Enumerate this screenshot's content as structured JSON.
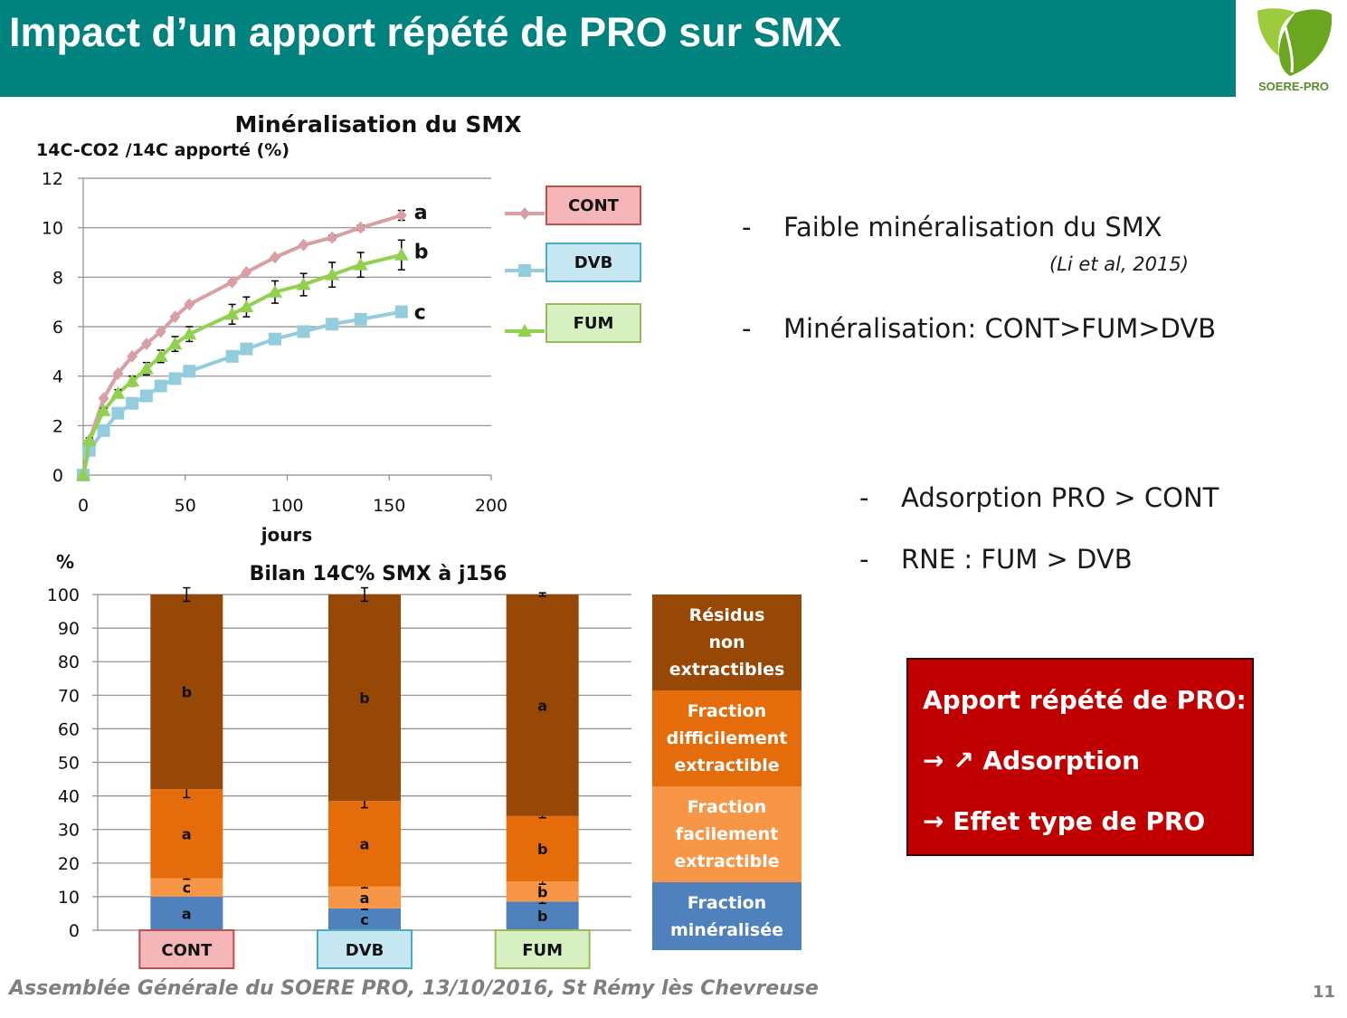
{
  "header": {
    "title": "Impact d’un apport répété de PRO sur SMX"
  },
  "logo": {
    "text": "SOERE-PRO"
  },
  "chart_data": [
    {
      "type": "line",
      "title": "Minéralisation du SMX",
      "ylabel": "14C-CO2 /14C apporté (%)",
      "xlabel": "jours",
      "xlim": [
        0,
        200
      ],
      "ylim": [
        0,
        12
      ],
      "xticks": [
        "0",
        "50",
        "100",
        "150",
        "200"
      ],
      "yticks": [
        "0",
        "2",
        "4",
        "6",
        "8",
        "10",
        "12"
      ],
      "grid": "horizontal",
      "legend_placement": "right",
      "series": [
        {
          "name": "CONT",
          "color": "#d8a0a4",
          "marker": "diamond",
          "letter": "a",
          "x": [
            0,
            3,
            10,
            17,
            24,
            31,
            38,
            45,
            52,
            73,
            80,
            94,
            108,
            122,
            136,
            156
          ],
          "y": [
            0,
            1.4,
            3.1,
            4.1,
            4.8,
            5.3,
            5.8,
            6.4,
            6.9,
            7.8,
            8.2,
            8.8,
            9.3,
            9.6,
            10.0,
            10.5
          ],
          "err": [
            0,
            0.05,
            0.05,
            0.05,
            0.05,
            0.05,
            0.05,
            0.05,
            0.05,
            0.05,
            0.05,
            0.05,
            0.05,
            0.1,
            0.1,
            0.2
          ]
        },
        {
          "name": "DVB",
          "color": "#93cddd",
          "marker": "square",
          "letter": "c",
          "x": [
            0,
            3,
            10,
            17,
            24,
            31,
            38,
            45,
            52,
            73,
            80,
            94,
            108,
            122,
            136,
            156
          ],
          "y": [
            0,
            1.0,
            1.8,
            2.5,
            2.9,
            3.2,
            3.6,
            3.9,
            4.2,
            4.8,
            5.1,
            5.5,
            5.8,
            6.1,
            6.3,
            6.6
          ],
          "err": [
            0,
            0,
            0,
            0,
            0,
            0,
            0,
            0,
            0,
            0,
            0,
            0,
            0,
            0,
            0,
            0
          ]
        },
        {
          "name": "FUM",
          "color": "#92d050",
          "marker": "triangle",
          "letter": "b",
          "x": [
            0,
            3,
            10,
            17,
            24,
            31,
            38,
            45,
            52,
            73,
            80,
            94,
            108,
            122,
            136,
            156
          ],
          "y": [
            0,
            1.4,
            2.6,
            3.3,
            3.8,
            4.3,
            4.8,
            5.3,
            5.7,
            6.5,
            6.8,
            7.4,
            7.7,
            8.1,
            8.5,
            8.9
          ],
          "err": [
            0,
            0.1,
            0.1,
            0.15,
            0.2,
            0.25,
            0.25,
            0.3,
            0.3,
            0.4,
            0.4,
            0.45,
            0.45,
            0.5,
            0.5,
            0.6
          ]
        }
      ]
    },
    {
      "type": "bar",
      "stacked": true,
      "title": "Bilan 14C% SMX à j156",
      "ylabel": "%",
      "ylim": [
        0,
        100
      ],
      "yticks": [
        "0",
        "10",
        "20",
        "30",
        "40",
        "50",
        "60",
        "70",
        "80",
        "90",
        "100"
      ],
      "grid": "horizontal",
      "legend_placement": "right",
      "categories": [
        "CONT",
        "DVB",
        "FUM"
      ],
      "category_colors": [
        {
          "fill": "#f4b6b8",
          "border": "#c0504d"
        },
        {
          "fill": "#c6e7f2",
          "border": "#4bacc6"
        },
        {
          "fill": "#d7f0c2",
          "border": "#9bbb59"
        }
      ],
      "series": [
        {
          "name": "Fraction minéralisée",
          "legend": "Fraction\nminéralisée",
          "color": "#4f81bd",
          "values": [
            10,
            6.5,
            8.5
          ],
          "letters": [
            "a",
            "c",
            "b"
          ],
          "err": [
            0,
            0.3,
            0.5
          ]
        },
        {
          "name": "Fraction facilement extractible",
          "legend": "Fraction\nfacilement\nextractible",
          "color": "#f79646",
          "values": [
            5.5,
            6.5,
            6
          ],
          "letters": [
            "c",
            "a",
            "b"
          ],
          "err": [
            0.3,
            0.4,
            0.8
          ]
        },
        {
          "name": "Fraction difficilement extractible",
          "legend": "Fraction\ndifficilement\nextractible",
          "color": "#e46c0a",
          "values": [
            26.5,
            25.5,
            19.5
          ],
          "letters": [
            "a",
            "a",
            "b"
          ],
          "err": [
            2.5,
            2,
            0.5
          ]
        },
        {
          "name": "Résidus non extractibles",
          "legend": "Résidus\nnon\nextractibles",
          "color": "#974706",
          "values": [
            58,
            61.5,
            66
          ],
          "letters": [
            "b",
            "b",
            "a"
          ],
          "err": [
            2,
            2,
            0.5
          ]
        }
      ]
    }
  ],
  "bullets": [
    {
      "dash": "-",
      "text": "Faible minéralisation du SMX"
    },
    {
      "dash": "-",
      "text": "Minéralisation: CONT>FUM>DVB"
    },
    {
      "dash": "-",
      "text": "Adsorption PRO > CONT"
    },
    {
      "dash": "-",
      "text": "RNE : FUM > DVB"
    }
  ],
  "citation": "(Li et al, 2015)",
  "conclusion": {
    "title": "Apport répété de PRO:",
    "line1": "→ ↗ Adsorption",
    "line2": "→ Effet type de PRO"
  },
  "footer": {
    "text": "Assemblée Générale du SOERE PRO, 13/10/2016,  St Rémy lès Chevreuse",
    "page": "11"
  }
}
